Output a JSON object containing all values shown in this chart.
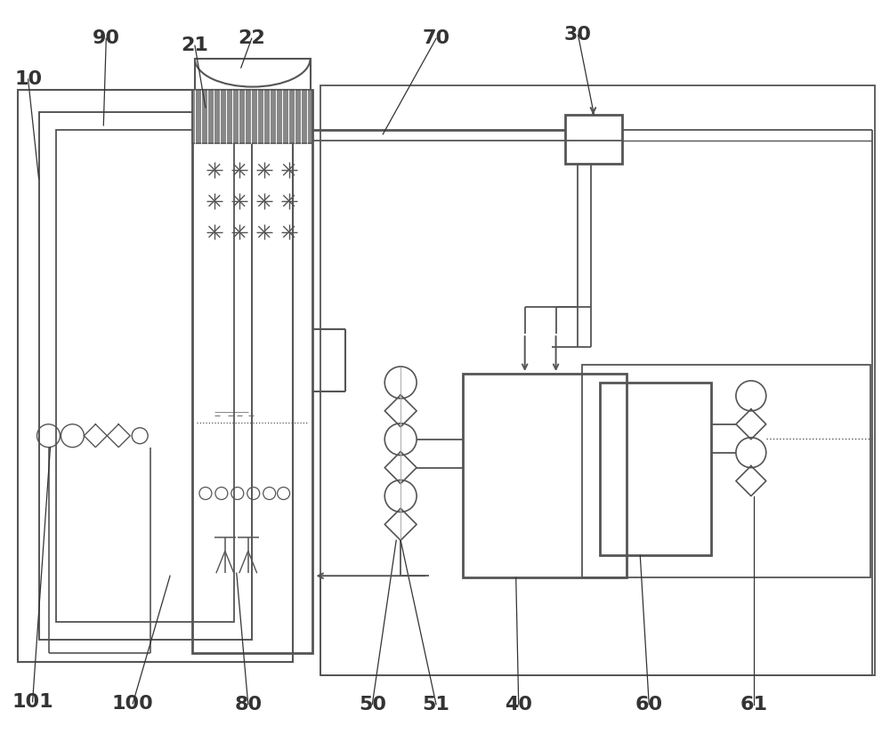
{
  "bg_color": "#ffffff",
  "lc": "#555555",
  "tc": "#333333",
  "lw": 1.4,
  "lw2": 2.0,
  "fs": 16
}
